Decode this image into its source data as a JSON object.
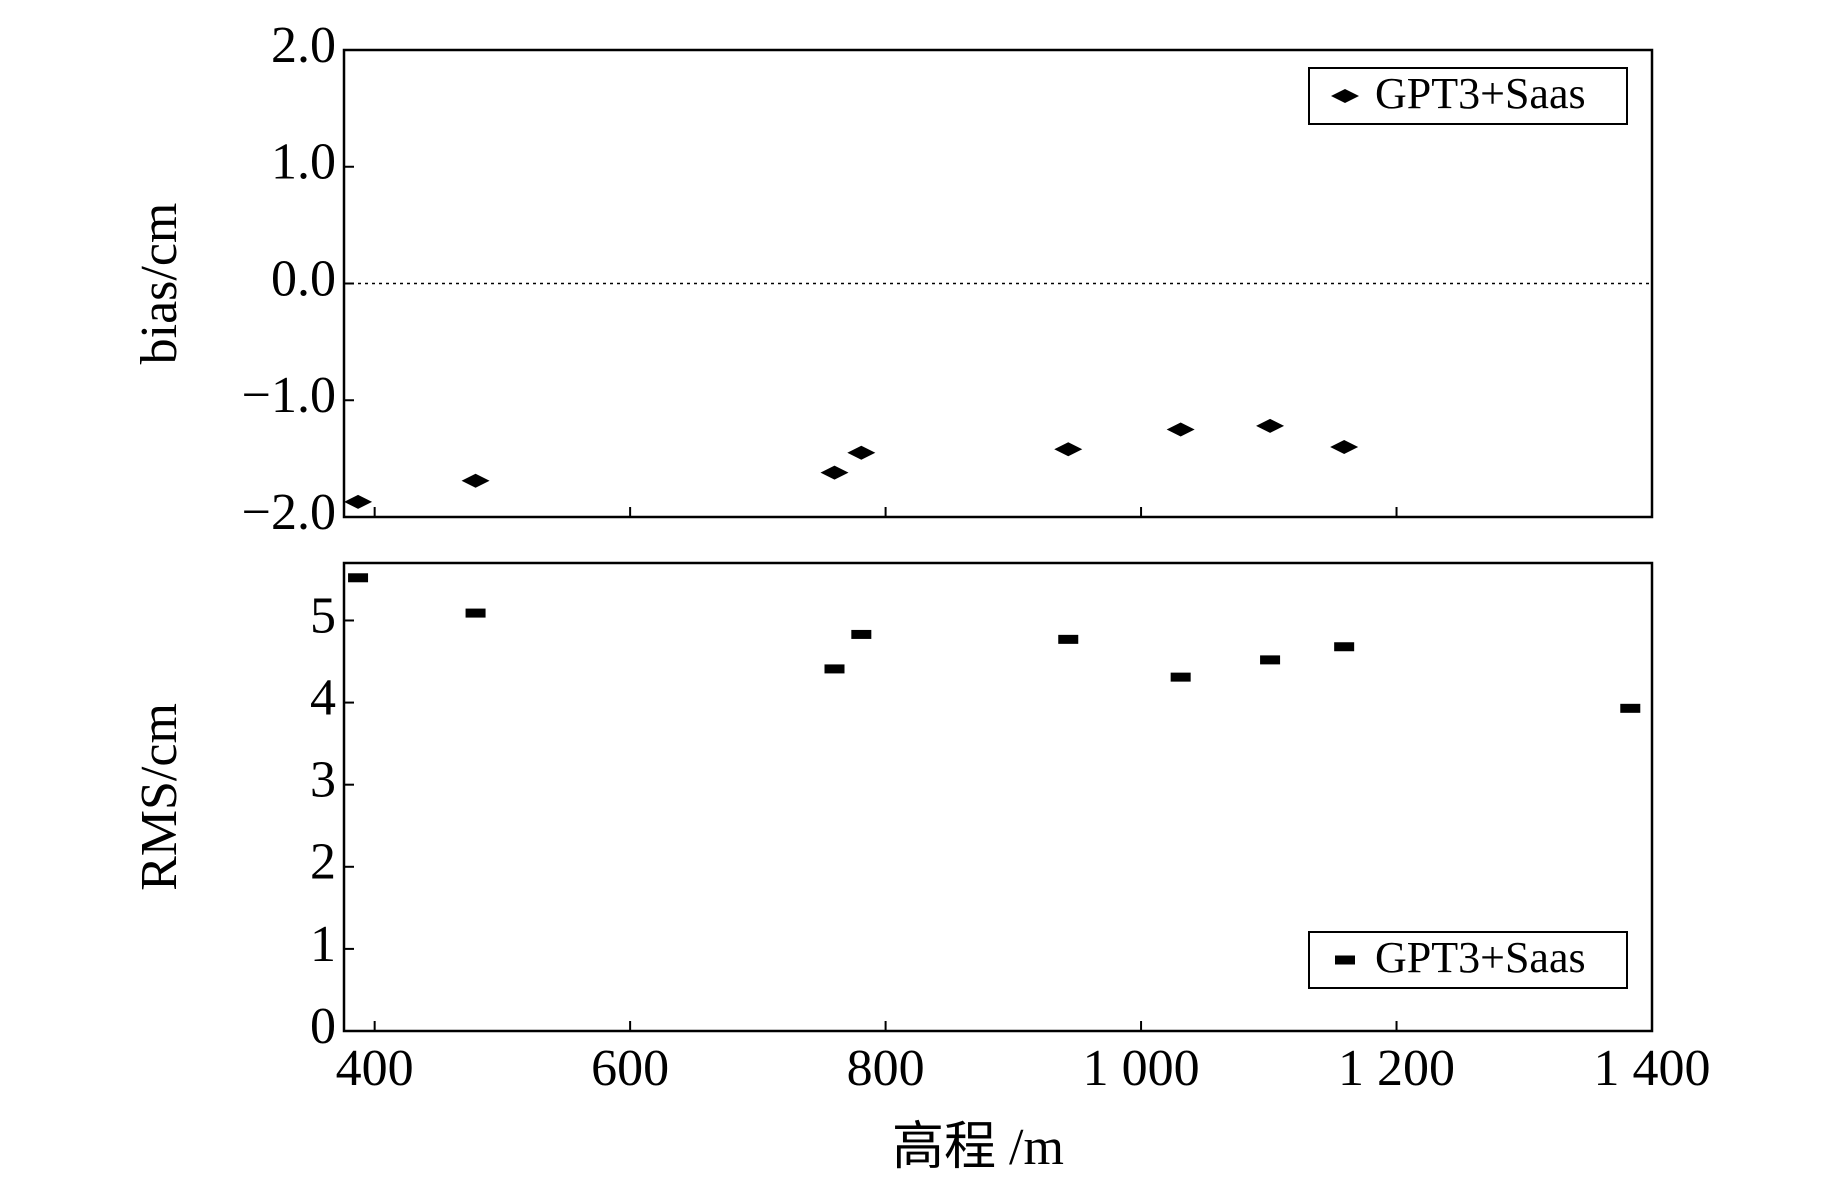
{
  "chart_data": [
    {
      "type": "scatter",
      "y_label": "bias/cm",
      "x": [
        387,
        479,
        760,
        781,
        943,
        1031,
        1101,
        1159
      ],
      "series": [
        {
          "name": "GPT3+Saas",
          "color": "#000000",
          "marker": "diamond",
          "values": [
            -1.87,
            -1.69,
            -1.62,
            -1.45,
            -1.42,
            -1.25,
            -1.22,
            -1.4
          ]
        }
      ],
      "xlim": [
        376,
        1400
      ],
      "xticks": [
        400,
        600,
        800,
        1000,
        1200,
        1400
      ],
      "xtick_labels": false,
      "ylim": [
        -2,
        2
      ],
      "yticks": [
        {
          "value": 2,
          "label": "2.0"
        },
        {
          "value": 1,
          "label": "1.0"
        },
        {
          "value": 0,
          "label": "0.0"
        },
        {
          "value": -1,
          "label": "−1.0"
        },
        {
          "value": -2,
          "label": "−2.0"
        }
      ],
      "reference_line": 0,
      "legend": "upper right"
    },
    {
      "type": "scatter",
      "y_label": "RMS/cm",
      "x_label": "高程 /m",
      "x": [
        387,
        479,
        760,
        781,
        943,
        1031,
        1101,
        1159,
        1383
      ],
      "series": [
        {
          "name": "GPT3+Saas",
          "color": "#000000",
          "marker": "dash",
          "values": [
            5.52,
            5.09,
            4.41,
            4.83,
            4.77,
            4.31,
            4.52,
            4.68,
            3.93
          ]
        }
      ],
      "xlim": [
        376,
        1400
      ],
      "xticks": [
        400,
        600,
        800,
        {
          "value": 1000,
          "label": "1 000"
        },
        {
          "value": 1200,
          "label": "1 200"
        },
        {
          "value": 1400,
          "label": "1 400"
        }
      ],
      "xtick_labels": true,
      "ylim": [
        0,
        5.7
      ],
      "yticks": [
        0,
        1,
        2,
        3,
        4,
        5
      ],
      "legend": "lower right"
    }
  ]
}
